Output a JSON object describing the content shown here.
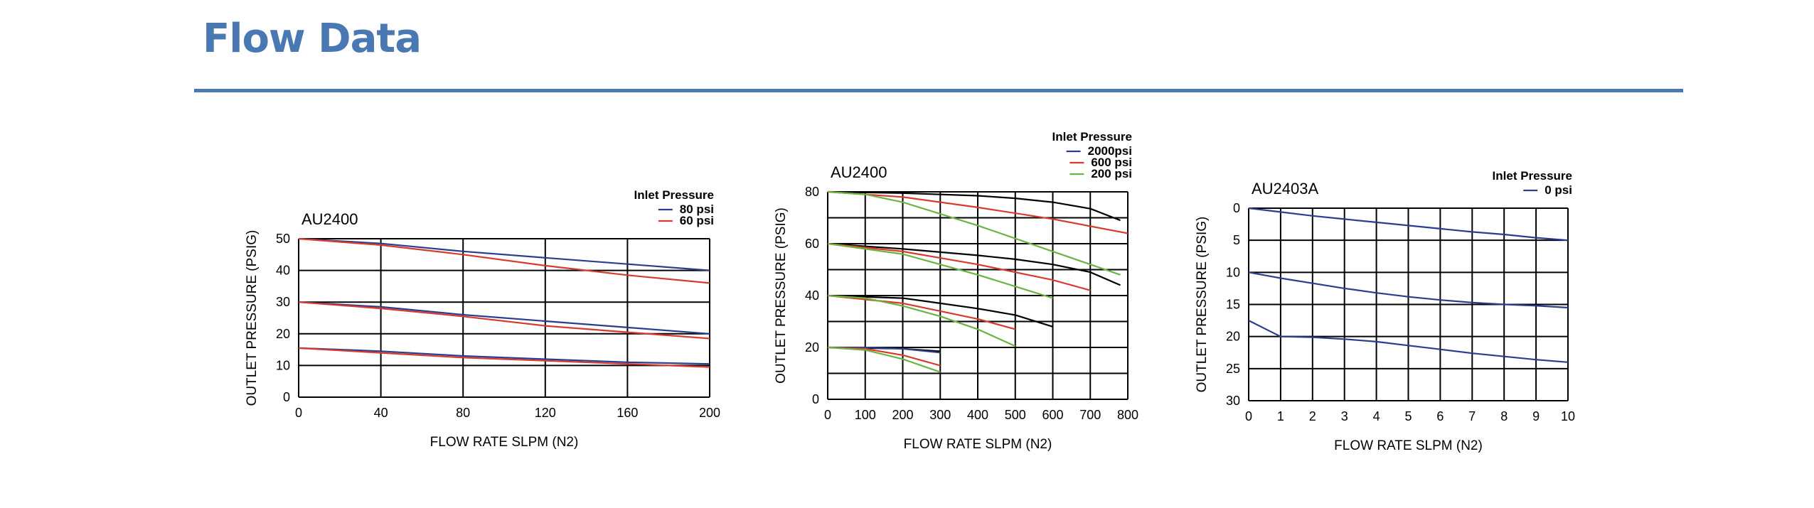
{
  "page": {
    "title": "Flow Data"
  },
  "chart_data": [
    {
      "type": "line",
      "title": "AU2400",
      "xlabel": "FLOW RATE SLPM (N2)",
      "ylabel": "OUTLET PRESSURE (PSIG)",
      "xlim": [
        0,
        200
      ],
      "ylim": [
        0,
        50
      ],
      "xticks": [
        0,
        40,
        80,
        120,
        160,
        200
      ],
      "yticks": [
        0,
        10,
        20,
        30,
        40,
        50
      ],
      "xgrid": [
        0,
        40,
        80,
        120,
        160,
        200
      ],
      "ygrid": [
        0,
        10,
        20,
        30,
        40,
        50
      ],
      "y_inverted": false,
      "grid": true,
      "legend": {
        "title": "Inlet Pressure",
        "placement": "top-right",
        "entries": [
          {
            "label": "80 psi",
            "color": "#2b3d8f"
          },
          {
            "label": "60 psi",
            "color": "#d83a2c"
          }
        ]
      },
      "series": [
        {
          "group": "80 psi",
          "color": "#2b3d8f",
          "x": [
            0,
            40,
            80,
            120,
            160,
            200
          ],
          "y": [
            50,
            48.5,
            46,
            44,
            42,
            40
          ]
        },
        {
          "group": "80 psi",
          "color": "#2b3d8f",
          "x": [
            0,
            40,
            80,
            120,
            160,
            200
          ],
          "y": [
            30,
            28.5,
            26,
            24,
            22,
            20
          ]
        },
        {
          "group": "80 psi",
          "color": "#2b3d8f",
          "x": [
            0,
            40,
            80,
            120,
            160,
            200
          ],
          "y": [
            15.5,
            14.5,
            13,
            12,
            11,
            10.5
          ]
        },
        {
          "group": "60 psi",
          "color": "#d83a2c",
          "x": [
            0,
            40,
            80,
            120,
            160,
            200
          ],
          "y": [
            50,
            48,
            45,
            41.5,
            38.5,
            36
          ]
        },
        {
          "group": "60 psi",
          "color": "#d83a2c",
          "x": [
            0,
            40,
            80,
            120,
            160,
            200
          ],
          "y": [
            30,
            28,
            25.5,
            22.5,
            20.5,
            18.5
          ]
        },
        {
          "group": "60 psi",
          "color": "#d83a2c",
          "x": [
            0,
            40,
            80,
            120,
            160,
            200
          ],
          "y": [
            15.5,
            14,
            12.5,
            11.5,
            10.5,
            9.5
          ]
        }
      ]
    },
    {
      "type": "line",
      "title": "AU2400",
      "xlabel": "FLOW RATE SLPM (N2)",
      "ylabel": "OUTLET PRESSURE (PSIG)",
      "xlim": [
        0,
        800
      ],
      "ylim": [
        0,
        80
      ],
      "xticks": [
        0,
        100,
        200,
        300,
        400,
        500,
        600,
        700,
        800
      ],
      "yticks": [
        0,
        20,
        40,
        60,
        80
      ],
      "xgrid": [
        0,
        100,
        200,
        300,
        400,
        500,
        600,
        700,
        800
      ],
      "ygrid": [
        0,
        10,
        20,
        30,
        40,
        50,
        60,
        70,
        80
      ],
      "y_inverted": false,
      "grid": true,
      "legend": {
        "title": "Inlet Pressure",
        "placement": "top-right",
        "entries": [
          {
            "label": "2000psi",
            "color": "#2b3d8f"
          },
          {
            "label": "600 psi",
            "color": "#d83a2c"
          },
          {
            "label": "200 psi",
            "color": "#6cb33f"
          }
        ]
      },
      "series": [
        {
          "group": "black",
          "color": "#000000",
          "x": [
            0,
            200,
            400,
            500,
            600,
            700,
            780
          ],
          "y": [
            80,
            79.5,
            78.5,
            77.5,
            76,
            73.5,
            69
          ]
        },
        {
          "group": "black",
          "color": "#000000",
          "x": [
            0,
            200,
            400,
            500,
            600,
            700,
            780
          ],
          "y": [
            60,
            58,
            55.5,
            54,
            52,
            49,
            44
          ]
        },
        {
          "group": "black",
          "color": "#000000",
          "x": [
            0,
            200,
            300,
            400,
            500,
            600
          ],
          "y": [
            40,
            39,
            37,
            35,
            32.5,
            28
          ]
        },
        {
          "group": "black",
          "color": "#000000",
          "x": [
            0,
            200,
            300
          ],
          "y": [
            20,
            19.5,
            18.5
          ]
        },
        {
          "group": "2000psi",
          "color": "#2b3d8f",
          "x": [
            0,
            100,
            200,
            300
          ],
          "y": [
            20,
            20,
            19.5,
            18
          ]
        },
        {
          "group": "600 psi",
          "color": "#d83a2c",
          "x": [
            0,
            200,
            400,
            600,
            800
          ],
          "y": [
            80,
            78,
            74,
            69.5,
            64
          ]
        },
        {
          "group": "600 psi",
          "color": "#d83a2c",
          "x": [
            0,
            200,
            400,
            600,
            700
          ],
          "y": [
            60,
            57,
            52,
            46,
            42
          ]
        },
        {
          "group": "600 psi",
          "color": "#d83a2c",
          "x": [
            0,
            200,
            300,
            400,
            500
          ],
          "y": [
            40,
            37,
            34,
            31,
            27
          ]
        },
        {
          "group": "600 psi",
          "color": "#d83a2c",
          "x": [
            0,
            100,
            200,
            300
          ],
          "y": [
            20,
            19.5,
            17,
            13
          ]
        },
        {
          "group": "200 psi",
          "color": "#6cb33f",
          "x": [
            0,
            100,
            200,
            400,
            600,
            780
          ],
          "y": [
            80,
            79,
            76,
            67,
            57,
            48
          ]
        },
        {
          "group": "200 psi",
          "color": "#6cb33f",
          "x": [
            0,
            200,
            400,
            600
          ],
          "y": [
            60,
            56,
            48,
            39
          ]
        },
        {
          "group": "200 psi",
          "color": "#6cb33f",
          "x": [
            0,
            100,
            200,
            300,
            400,
            500
          ],
          "y": [
            40,
            39,
            36,
            32,
            27,
            20.5
          ]
        },
        {
          "group": "200 psi",
          "color": "#6cb33f",
          "x": [
            0,
            100,
            200,
            300
          ],
          "y": [
            20,
            19,
            15.5,
            10.5
          ]
        }
      ]
    },
    {
      "type": "line",
      "title": "AU2403A",
      "xlabel": "FLOW RATE SLPM (N2)",
      "ylabel": "OUTLET PRESSURE (PSIG)",
      "xlim": [
        0,
        10
      ],
      "ylim": [
        0,
        30
      ],
      "xticks": [
        0,
        1,
        2,
        3,
        4,
        5,
        6,
        7,
        8,
        9,
        10
      ],
      "yticks": [
        0,
        5,
        10,
        15,
        20,
        25,
        30
      ],
      "xgrid": [
        0,
        1,
        2,
        3,
        4,
        5,
        6,
        7,
        8,
        9,
        10
      ],
      "ygrid": [
        0,
        5,
        10,
        15,
        20,
        25,
        30
      ],
      "y_inverted": true,
      "grid": true,
      "legend": {
        "title": "Inlet Pressure",
        "placement": "top-right",
        "entries": [
          {
            "label": "0 psi",
            "color": "#2b3d8f"
          }
        ]
      },
      "series": [
        {
          "group": "0 psi",
          "color": "#2b3d8f",
          "x": [
            0,
            1,
            2,
            3,
            4,
            5,
            6,
            7,
            8,
            9,
            10
          ],
          "y": [
            0,
            0.6,
            1.2,
            1.7,
            2.2,
            2.7,
            3.2,
            3.7,
            4.1,
            4.6,
            5
          ]
        },
        {
          "group": "0 psi",
          "color": "#2b3d8f",
          "x": [
            0,
            1,
            2,
            3,
            4,
            5,
            6,
            7,
            8,
            9,
            10
          ],
          "y": [
            10,
            10.9,
            11.7,
            12.5,
            13.2,
            13.8,
            14.3,
            14.7,
            15,
            15.2,
            15.5
          ]
        },
        {
          "group": "0 psi",
          "color": "#2b3d8f",
          "x": [
            0,
            1,
            2,
            3,
            4,
            5,
            6,
            7,
            8,
            9,
            10
          ],
          "y": [
            17.5,
            20,
            20.1,
            20.4,
            20.8,
            21.4,
            22,
            22.6,
            23.1,
            23.6,
            24
          ]
        }
      ]
    }
  ]
}
